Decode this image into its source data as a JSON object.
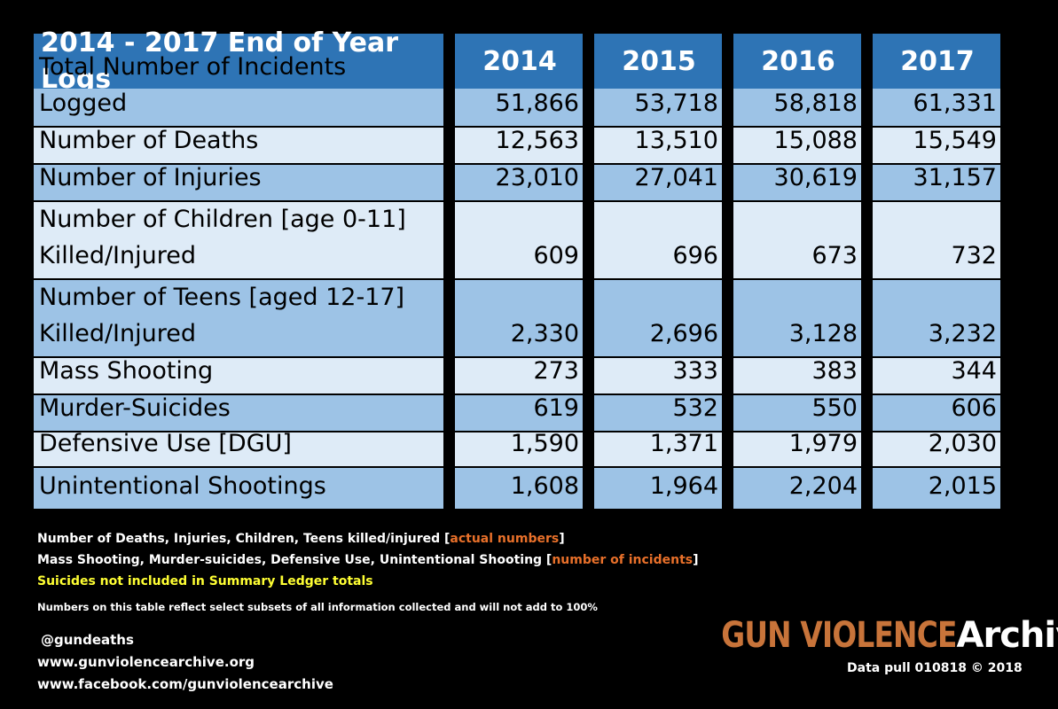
{
  "table": {
    "header": [
      "2014 - 2017 End of Year Logs",
      "2014",
      "2015",
      "2016",
      "2017"
    ],
    "rows": [
      {
        "label": "Total Number of Incidents Logged",
        "values": [
          "51,866",
          "53,718",
          "58,818",
          "61,331"
        ]
      },
      {
        "label": "Number of Deaths",
        "values": [
          "12,563",
          "13,510",
          "15,088",
          "15,549"
        ]
      },
      {
        "label": "Number of Injuries",
        "values": [
          "23,010",
          "27,041",
          "30,619",
          "31,157"
        ]
      },
      {
        "label": "Number of Children [age 0-11]\nKilled/Injured",
        "values": [
          "609",
          "696",
          "673",
          "732"
        ]
      },
      {
        "label": "Number of Teens [aged 12-17]\nKilled/Injured",
        "values": [
          "2,330",
          "2,696",
          "3,128",
          "3,232"
        ]
      },
      {
        "label": "Mass Shooting",
        "values": [
          "273",
          "333",
          "383",
          "344"
        ]
      },
      {
        "label": "Murder-Suicides",
        "values": [
          "619",
          "532",
          "550",
          "606"
        ]
      },
      {
        "label": "Defensive Use [DGU]",
        "values": [
          "1,590",
          "1,371",
          "1,979",
          "2,030"
        ]
      },
      {
        "label": "Unintentional Shootings",
        "values": [
          "1,608",
          "1,964",
          "2,204",
          "2,015"
        ]
      }
    ]
  },
  "notes": {
    "line1_prefix": "Number of Deaths, Injuries, Children, Teens  killed/injured [",
    "line1_highlight": "actual numbers",
    "line1_suffix": "]",
    "line2_prefix": "Mass Shooting, Murder-suicides, Defensive Use, Unintentional Shooting [",
    "line2_highlight": "number of incidents",
    "line2_suffix": "]",
    "line3": "Suicides not included in Summary Ledger totals",
    "disclaimer": "Numbers on this table reflect  select subsets of all information collected and will not add to 100%"
  },
  "contact": {
    "twitter": "@gundeaths",
    "website": "www.gunviolencearchive.org",
    "facebook": "www.facebook.com/gunviolencearchive"
  },
  "brand": {
    "logo_part1": "GUN VIOLENCE",
    "logo_part2": "Archive",
    "data_pull": "Data pull 010818   © 2018"
  },
  "colors": {
    "header_bg": "#2e74b5",
    "row_dark": "#9dc3e6",
    "row_light": "#deebf7",
    "accent_orange": "#e8702a",
    "accent_yellow": "#ffff33"
  }
}
